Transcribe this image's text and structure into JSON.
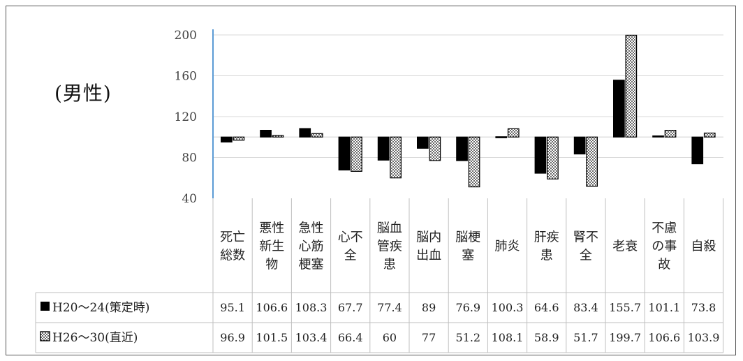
{
  "label": "(男性)",
  "chart_data": {
    "type": "bar",
    "baseline": 100,
    "ylim": [
      40,
      200
    ],
    "yticks": [
      40,
      80,
      120,
      160,
      200
    ],
    "grid": true,
    "categories": [
      [
        "死亡",
        "総数"
      ],
      [
        "悪性",
        "新生",
        "物"
      ],
      [
        "急性",
        "心筋",
        "梗塞"
      ],
      [
        "心不",
        "全"
      ],
      [
        "脳血",
        "管疾",
        "患"
      ],
      [
        "脳内",
        "出血"
      ],
      [
        "脳梗",
        "塞"
      ],
      [
        "肺炎"
      ],
      [
        "肝疾",
        "患"
      ],
      [
        "腎不",
        "全"
      ],
      [
        "老衰"
      ],
      [
        "不慮",
        "の事",
        "故"
      ],
      [
        "自殺"
      ]
    ],
    "series": [
      {
        "name": "H20～24(策定時)",
        "fill": "#000000",
        "pattern": "solid",
        "values": [
          95.1,
          106.6,
          108.3,
          67.7,
          77.4,
          89,
          76.9,
          100.3,
          64.6,
          83.4,
          155.7,
          101.1,
          73.8
        ]
      },
      {
        "name": "H26～30(直近)",
        "fill": "#ffffff",
        "pattern": "dots",
        "values": [
          96.9,
          101.5,
          103.4,
          66.4,
          60,
          77,
          51.2,
          108.1,
          58.9,
          51.7,
          199.7,
          106.6,
          103.9
        ]
      }
    ],
    "colors": {
      "axis": "#5b9bd5",
      "grid": "#d9d9d9",
      "table": "#bfbfbf"
    }
  }
}
